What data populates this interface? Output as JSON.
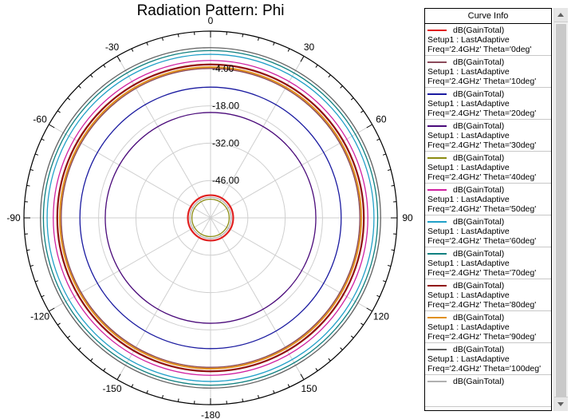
{
  "chart_data": {
    "type": "polar",
    "title": "Radiation Pattern: Phi",
    "angle_ticks": [
      0,
      30,
      60,
      90,
      120,
      150,
      -180,
      -150,
      -120,
      -90,
      -60,
      -30
    ],
    "radial_ticks": [
      "-4.00",
      "-18.00",
      "-32.00",
      "-46.00"
    ],
    "radial_tick_values": [
      -4,
      -18,
      -32,
      -46
    ],
    "radial_range": [
      -60,
      10
    ],
    "grid": true,
    "legend_title": "Curve Info",
    "series": [
      {
        "name": "dB(GainTotal)",
        "setup": "Setup1 : LastAdaptive",
        "freq": "Freq='2.4GHz' Theta='0deg'",
        "color": "#e02020",
        "value": -51.5
      },
      {
        "name": "dB(GainTotal)",
        "setup": "Setup1 : LastAdaptive",
        "freq": "Freq='2.4GHz' Theta='10deg'",
        "color": "#8b4a5a",
        "value": -4.0
      },
      {
        "name": "dB(GainTotal)",
        "setup": "Setup1 : LastAdaptive",
        "freq": "Freq='2.4GHz' Theta='20deg'",
        "color": "#1a1aa0",
        "value": -11.0
      },
      {
        "name": "dB(GainTotal)",
        "setup": "Setup1 : LastAdaptive",
        "freq": "Freq='2.4GHz' Theta='30deg'",
        "color": "#4a0a7a",
        "value": -20.5
      },
      {
        "name": "dB(GainTotal)",
        "setup": "Setup1 : LastAdaptive",
        "freq": "Freq='2.4GHz' Theta='40deg'",
        "color": "#8b8b10",
        "value": -53.0
      },
      {
        "name": "dB(GainTotal)",
        "setup": "Setup1 : LastAdaptive",
        "freq": "Freq='2.4GHz' Theta='50deg'",
        "color": "#d020a0",
        "value": -1.0
      },
      {
        "name": "dB(GainTotal)",
        "setup": "Setup1 : LastAdaptive",
        "freq": "Freq='2.4GHz' Theta='60deg'",
        "color": "#20a0c8",
        "value": 1.3
      },
      {
        "name": "dB(GainTotal)",
        "setup": "Setup1 : LastAdaptive",
        "freq": "Freq='2.4GHz' Theta='70deg'",
        "color": "#108080",
        "value": 2.7
      },
      {
        "name": "dB(GainTotal)",
        "setup": "Setup1 : LastAdaptive",
        "freq": "Freq='2.4GHz' Theta='80deg'",
        "color": "#901010",
        "value": -2.5
      },
      {
        "name": "dB(GainTotal)",
        "setup": "Setup1 : LastAdaptive",
        "freq": "Freq='2.4GHz' Theta='90deg'",
        "color": "#e09020",
        "value": -3.5
      },
      {
        "name": "dB(GainTotal)",
        "setup": "Setup1 : LastAdaptive",
        "freq": "Freq='2.4GHz' Theta='100deg'",
        "color": "#606060",
        "value": 3.8
      },
      {
        "name": "dB(GainTotal)",
        "setup": "",
        "freq": "",
        "color": "#b0b0b0",
        "value": -52.3
      }
    ]
  }
}
